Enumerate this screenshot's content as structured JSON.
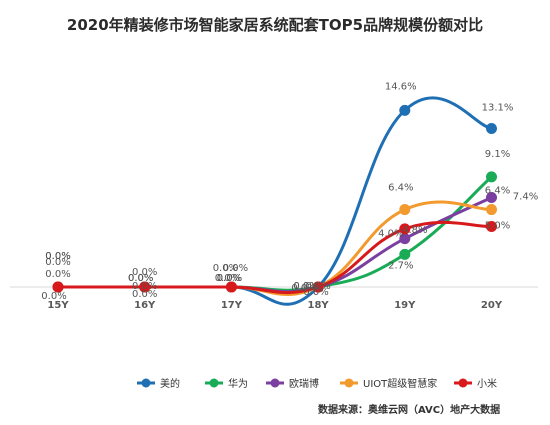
{
  "chart_data": {
    "type": "line",
    "title": "2020年精装修市场智能家居系统配套TOP5品牌规模份额对比",
    "categories": [
      "15Y",
      "16Y",
      "17Y",
      "18Y",
      "19Y",
      "20Y"
    ],
    "series": [
      {
        "name": "美的",
        "color": "#1f6fb5",
        "values": [
          0.0,
          0.0,
          0.0,
          0.0,
          14.6,
          13.1
        ],
        "labels": [
          "0.0%",
          "0.0%",
          "0.0%",
          "0.0%",
          "14.6%",
          "13.1%"
        ]
      },
      {
        "name": "华为",
        "color": "#1aab57",
        "values": [
          0.0,
          0.0,
          0.0,
          0.0,
          2.7,
          9.1
        ],
        "labels": [
          "0.0%",
          "0.0%",
          "0.0%",
          "0.0%",
          "2.7%",
          "9.1%"
        ]
      },
      {
        "name": "欧瑞博",
        "color": "#7a3fa0",
        "values": [
          0.0,
          0.0,
          0.0,
          0.0,
          4.0,
          7.4
        ],
        "labels": [
          "0.0%",
          "0.0%",
          "0.0%",
          "0.0%",
          "4.0%",
          "7.4%"
        ]
      },
      {
        "name": "UIOT超级智慧家",
        "color": "#f39a2e",
        "values": [
          0.0,
          0.0,
          0.0,
          0.0,
          6.4,
          6.4
        ],
        "labels": [
          "0.0%",
          "0.0%",
          "0.0%",
          "0.0%",
          "6.4%",
          "6.4%"
        ]
      },
      {
        "name": "小米",
        "color": "#d7191c",
        "values": [
          0.0,
          0.0,
          0.0,
          0.0,
          4.8,
          5.0
        ],
        "labels": [
          "0.0%",
          "0.0%",
          "0.0%",
          "0.0%",
          "4.8%",
          "5.0%"
        ]
      }
    ],
    "legend_position": "bottom-right",
    "grid": false,
    "source": "数据来源：奥维云网（AVC）地产大数据"
  }
}
